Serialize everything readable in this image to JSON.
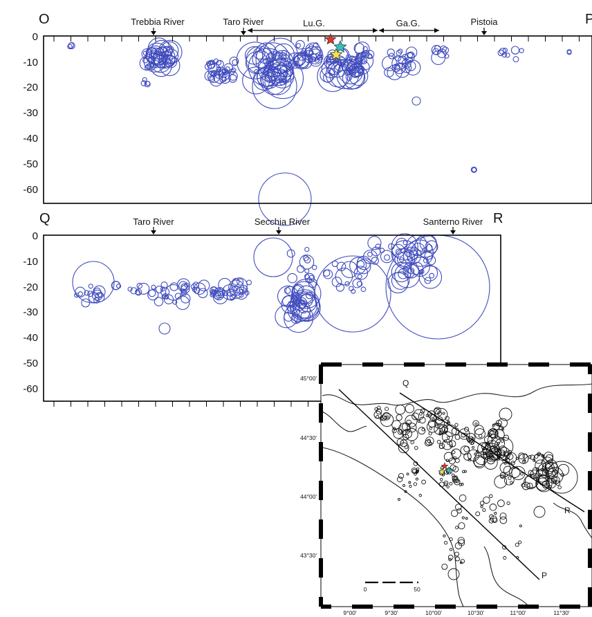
{
  "section_op": {
    "corner_start": "O",
    "corner_end": "P",
    "depth_ticks": [
      "0",
      "-10",
      "-20",
      "-30",
      "-40",
      "-50",
      "-60"
    ],
    "river_labels": [
      "Trebbia River",
      "Taro River",
      "Pistoia"
    ],
    "range_labels": [
      "Lu.G.",
      "Ga.G."
    ]
  },
  "section_qr": {
    "corner_start": "Q",
    "corner_end": "R",
    "depth_ticks": [
      "0",
      "-10",
      "-20",
      "-30",
      "-40",
      "-50",
      "-60"
    ],
    "river_labels": [
      "Taro River",
      "Secchia River",
      "Santerno River"
    ]
  },
  "map": {
    "lat_ticks": [
      "45°00'",
      "44°30'",
      "44°00'",
      "43°30'"
    ],
    "lon_ticks": [
      "9°00'",
      "9°30'",
      "10°00'",
      "10°30'",
      "11°00'",
      "11°30'"
    ],
    "profile_labels": [
      "Q",
      "R",
      "P"
    ],
    "scale_labels": [
      "0",
      "50"
    ]
  },
  "colors": {
    "hypocenter": "#3f4bbd",
    "star_red": "#e8322e",
    "star_cyan": "#2ec4c4",
    "star_yellow": "#f2e14a"
  }
}
